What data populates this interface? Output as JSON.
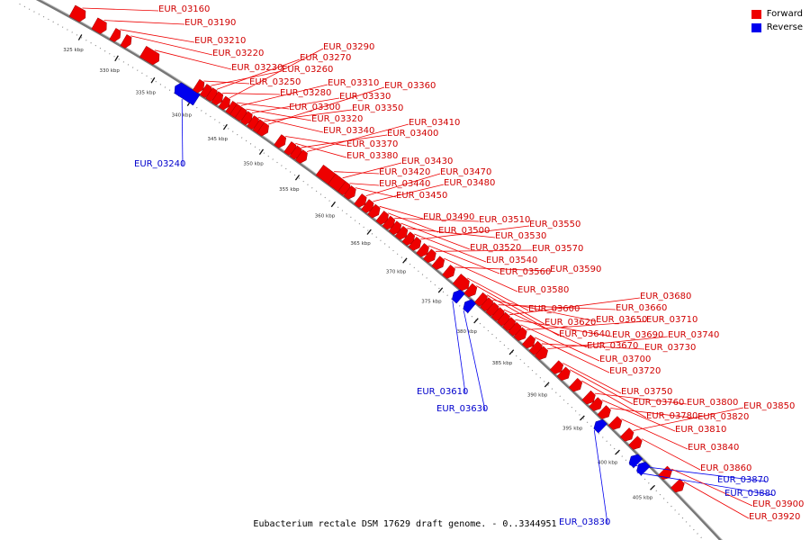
{
  "caption": "Eubacterium rectale DSM 17629 draft genome. - 0..3344951",
  "legend": {
    "forward_label": "Forward",
    "reverse_label": "Reverse",
    "forward_color": "#ee0000",
    "reverse_color": "#0000ee"
  },
  "kbp_ticks": [
    "325 kbp",
    "330 kbp",
    "335 kbp",
    "340 kbp",
    "345 kbp",
    "350 kbp",
    "355 kbp",
    "360 kbp",
    "365 kbp",
    "370 kbp",
    "375 kbp",
    "380 kbp",
    "385 kbp",
    "390 kbp",
    "395 kbp",
    "400 kbp",
    "405 kbp"
  ],
  "genes": [
    {
      "name": "EUR_03160",
      "strand": "forward"
    },
    {
      "name": "EUR_03190",
      "strand": "forward"
    },
    {
      "name": "EUR_03210",
      "strand": "forward"
    },
    {
      "name": "EUR_03220",
      "strand": "forward"
    },
    {
      "name": "EUR_03230",
      "strand": "forward"
    },
    {
      "name": "EUR_03240",
      "strand": "reverse"
    },
    {
      "name": "EUR_03250",
      "strand": "forward"
    },
    {
      "name": "EUR_03260",
      "strand": "forward"
    },
    {
      "name": "EUR_03270",
      "strand": "forward"
    },
    {
      "name": "EUR_03280",
      "strand": "forward"
    },
    {
      "name": "EUR_03290",
      "strand": "forward"
    },
    {
      "name": "EUR_03300",
      "strand": "forward"
    },
    {
      "name": "EUR_03310",
      "strand": "forward"
    },
    {
      "name": "EUR_03320",
      "strand": "forward"
    },
    {
      "name": "EUR_03330",
      "strand": "forward"
    },
    {
      "name": "EUR_03340",
      "strand": "forward"
    },
    {
      "name": "EUR_03350",
      "strand": "forward"
    },
    {
      "name": "EUR_03360",
      "strand": "forward"
    },
    {
      "name": "EUR_03370",
      "strand": "forward"
    },
    {
      "name": "EUR_03380",
      "strand": "forward"
    },
    {
      "name": "EUR_03400",
      "strand": "forward"
    },
    {
      "name": "EUR_03410",
      "strand": "forward"
    },
    {
      "name": "EUR_03420",
      "strand": "forward"
    },
    {
      "name": "EUR_03430",
      "strand": "forward"
    },
    {
      "name": "EUR_03440",
      "strand": "forward"
    },
    {
      "name": "EUR_03450",
      "strand": "forward"
    },
    {
      "name": "EUR_03470",
      "strand": "forward"
    },
    {
      "name": "EUR_03480",
      "strand": "forward"
    },
    {
      "name": "EUR_03490",
      "strand": "forward"
    },
    {
      "name": "EUR_03500",
      "strand": "forward"
    },
    {
      "name": "EUR_03510",
      "strand": "forward"
    },
    {
      "name": "EUR_03520",
      "strand": "forward"
    },
    {
      "name": "EUR_03530",
      "strand": "forward"
    },
    {
      "name": "EUR_03540",
      "strand": "forward"
    },
    {
      "name": "EUR_03550",
      "strand": "forward"
    },
    {
      "name": "EUR_03560",
      "strand": "forward"
    },
    {
      "name": "EUR_03570",
      "strand": "forward"
    },
    {
      "name": "EUR_03580",
      "strand": "forward"
    },
    {
      "name": "EUR_03590",
      "strand": "forward"
    },
    {
      "name": "EUR_03600",
      "strand": "forward"
    },
    {
      "name": "EUR_03610",
      "strand": "reverse"
    },
    {
      "name": "EUR_03620",
      "strand": "forward"
    },
    {
      "name": "EUR_03630",
      "strand": "reverse"
    },
    {
      "name": "EUR_03640",
      "strand": "forward"
    },
    {
      "name": "EUR_03650",
      "strand": "forward"
    },
    {
      "name": "EUR_03660",
      "strand": "forward"
    },
    {
      "name": "EUR_03670",
      "strand": "forward"
    },
    {
      "name": "EUR_03680",
      "strand": "forward"
    },
    {
      "name": "EUR_03690",
      "strand": "forward"
    },
    {
      "name": "EUR_03700",
      "strand": "forward"
    },
    {
      "name": "EUR_03710",
      "strand": "forward"
    },
    {
      "name": "EUR_03720",
      "strand": "forward"
    },
    {
      "name": "EUR_03730",
      "strand": "forward"
    },
    {
      "name": "EUR_03740",
      "strand": "forward"
    },
    {
      "name": "EUR_03750",
      "strand": "forward"
    },
    {
      "name": "EUR_03760",
      "strand": "forward"
    },
    {
      "name": "EUR_03780",
      "strand": "forward"
    },
    {
      "name": "EUR_03800",
      "strand": "forward"
    },
    {
      "name": "EUR_03810",
      "strand": "forward"
    },
    {
      "name": "EUR_03820",
      "strand": "forward"
    },
    {
      "name": "EUR_03830",
      "strand": "reverse"
    },
    {
      "name": "EUR_03840",
      "strand": "forward"
    },
    {
      "name": "EUR_03850",
      "strand": "forward"
    },
    {
      "name": "EUR_03860",
      "strand": "forward"
    },
    {
      "name": "EUR_03870",
      "strand": "reverse"
    },
    {
      "name": "EUR_03880",
      "strand": "reverse"
    },
    {
      "name": "EUR_03900",
      "strand": "forward"
    },
    {
      "name": "EUR_03920",
      "strand": "forward"
    }
  ]
}
